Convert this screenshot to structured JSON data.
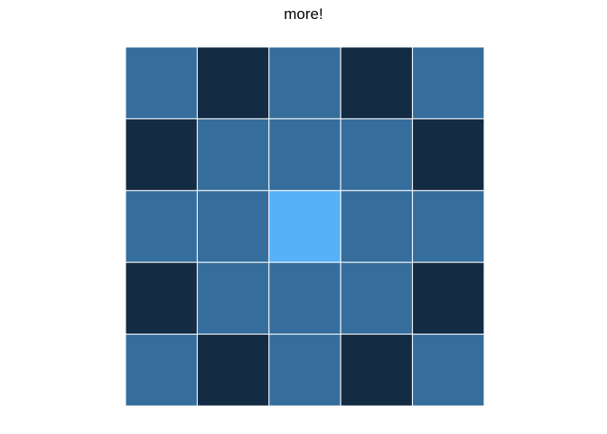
{
  "chart_data": {
    "type": "heatmap",
    "title": "more!",
    "xlabel": "",
    "ylabel": "",
    "rows": 5,
    "cols": 5,
    "values": [
      [
        1,
        0,
        1,
        0,
        1
      ],
      [
        0,
        1,
        1,
        1,
        0
      ],
      [
        1,
        1,
        2,
        1,
        1
      ],
      [
        0,
        1,
        1,
        1,
        0
      ],
      [
        1,
        0,
        1,
        0,
        1
      ]
    ],
    "color_low": "#132B43",
    "color_high": "#56B1F7",
    "value_range": [
      0,
      2
    ],
    "cell_border_color": "#ffffff",
    "legend": false,
    "grid": false,
    "axes": false
  }
}
